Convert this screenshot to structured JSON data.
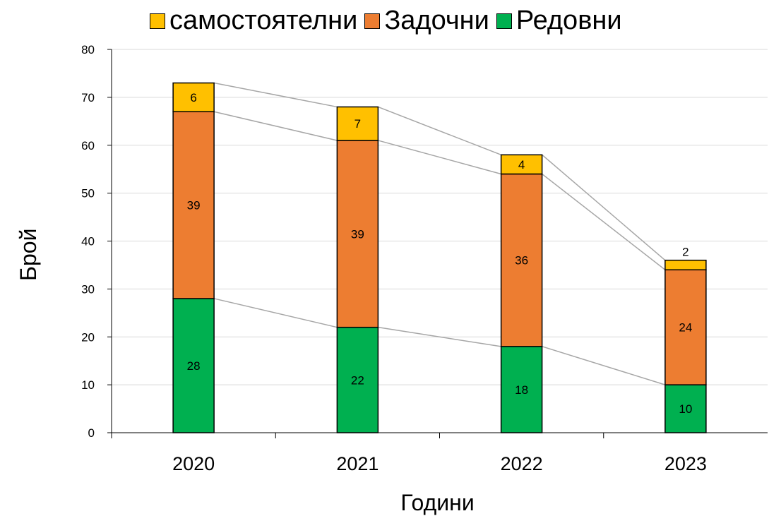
{
  "chart_data": {
    "type": "bar",
    "stacked": true,
    "categories": [
      "2020",
      "2021",
      "2022",
      "2023"
    ],
    "series": [
      {
        "name": "Редовни",
        "values": [
          28,
          22,
          18,
          10
        ],
        "color": "#00b050"
      },
      {
        "name": "Задочни",
        "values": [
          39,
          39,
          36,
          24
        ],
        "color": "#ed7d31"
      },
      {
        "name": "самостоятелни",
        "values": [
          6,
          7,
          4,
          2
        ],
        "color": "#ffc000"
      }
    ],
    "legend": [
      "самостоятелни",
      "Задочни",
      "Редовни"
    ],
    "legend_position": "top",
    "xlabel": "Години",
    "ylabel": "Брой",
    "ylim": [
      0,
      80
    ],
    "yticks": [
      "0",
      "10",
      "20",
      "30",
      "40",
      "50",
      "60",
      "70",
      "80"
    ],
    "grid": true,
    "series_lines": true
  }
}
